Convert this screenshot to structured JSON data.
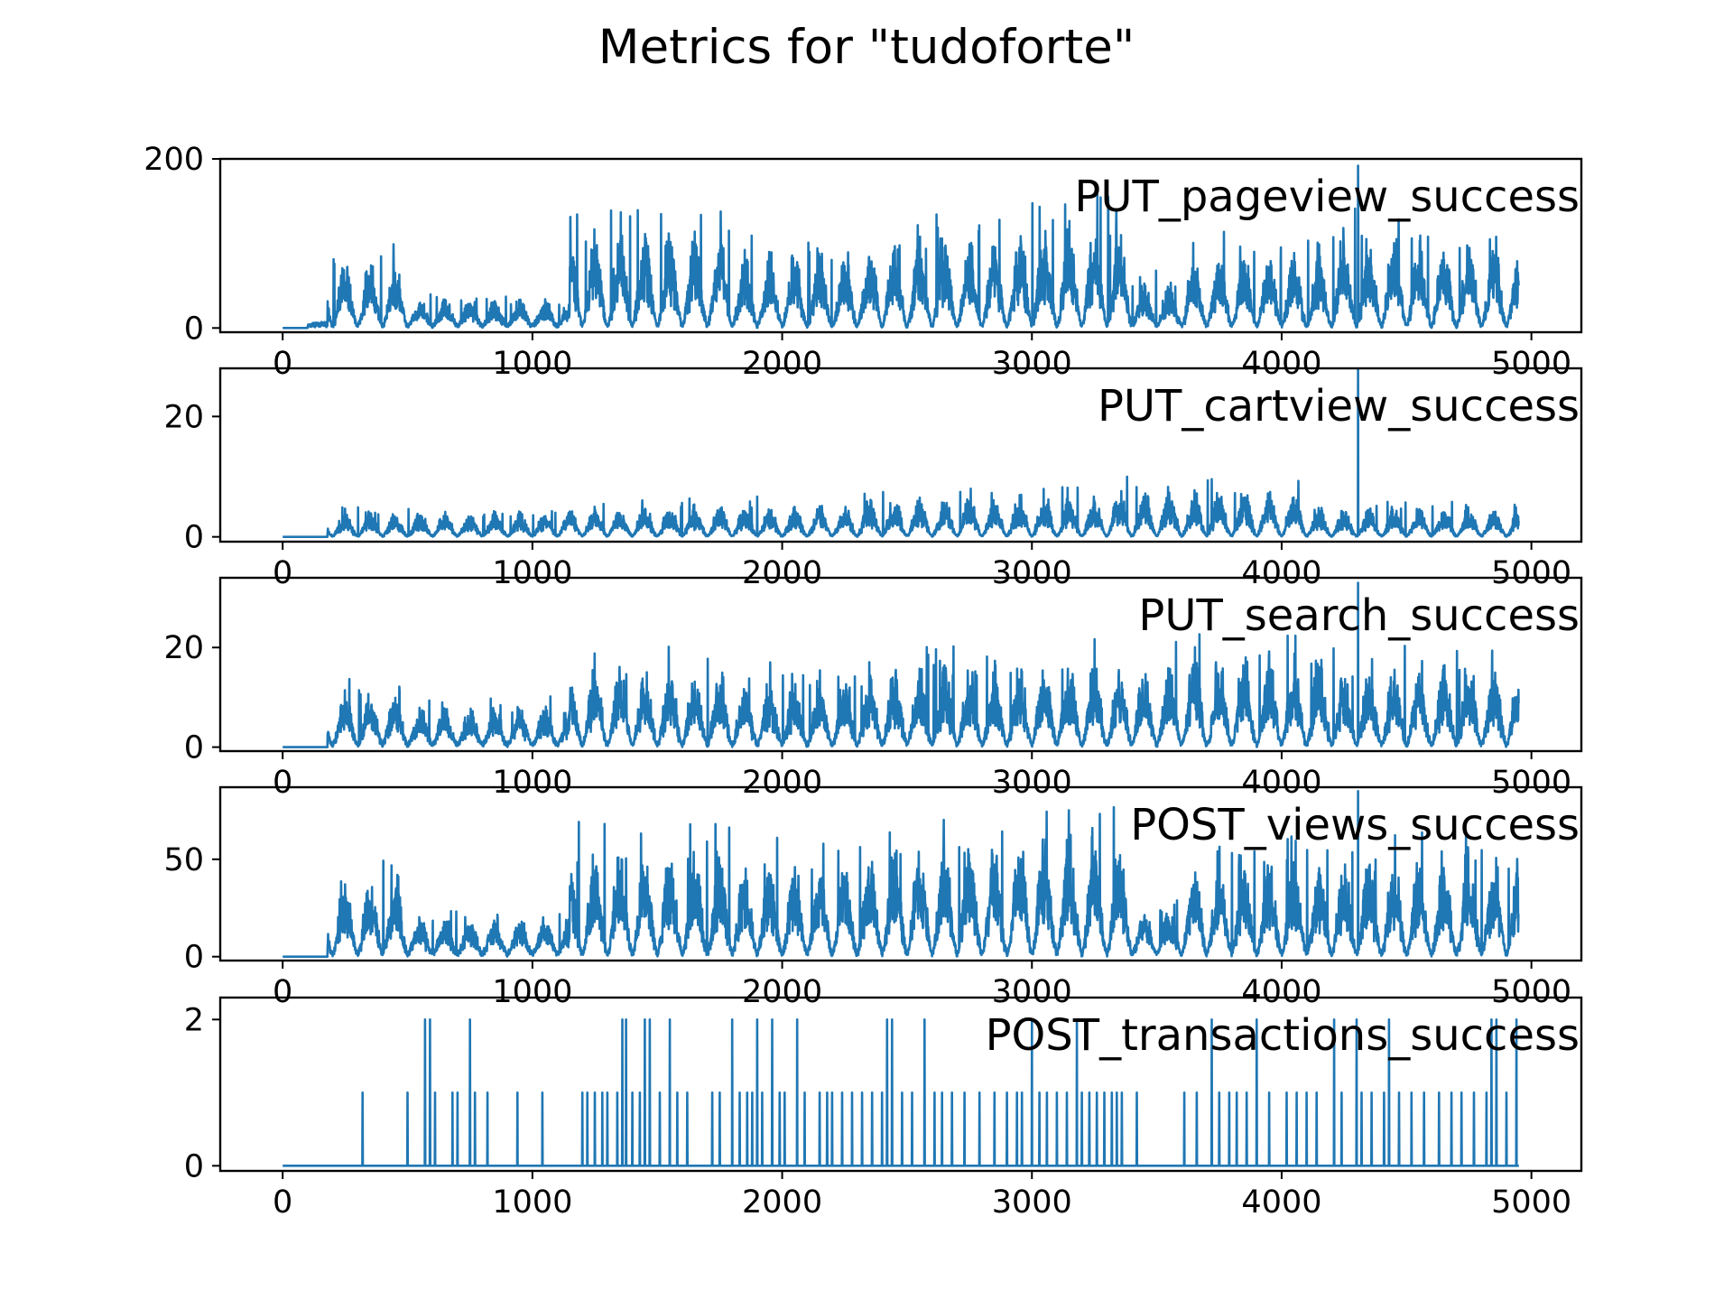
{
  "figure": {
    "title": "Metrics for \"tudoforte\""
  },
  "chart_data": [
    {
      "type": "line",
      "series": [
        {
          "name": "PUT_pageview_success",
          "color": "#1f77b4"
        }
      ],
      "xlim": [
        -250,
        5200
      ],
      "ylim": [
        -5,
        200
      ],
      "xticks": [
        0,
        1000,
        2000,
        3000,
        4000,
        5000
      ],
      "yticks": [
        0,
        200
      ],
      "profile": {
        "n": 4950,
        "onset": 100,
        "base": 5,
        "period": 100,
        "step_max": 190,
        "spike": 192,
        "seed": 11,
        "segments": [
          [
            0,
            180,
            0.02
          ],
          [
            180,
            500,
            0.45
          ],
          [
            500,
            1150,
            0.18
          ],
          [
            1150,
            1800,
            0.65
          ],
          [
            1800,
            2350,
            0.5
          ],
          [
            2350,
            2950,
            0.6
          ],
          [
            2950,
            3400,
            0.7
          ],
          [
            3400,
            3600,
            0.3
          ],
          [
            3600,
            4200,
            0.5
          ],
          [
            4200,
            4700,
            0.62
          ],
          [
            4700,
            4950,
            0.55
          ]
        ]
      }
    },
    {
      "type": "line",
      "series": [
        {
          "name": "PUT_cartview_success",
          "color": "#1f77b4"
        }
      ],
      "xlim": [
        -250,
        5200
      ],
      "ylim": [
        -0.8,
        28
      ],
      "xticks": [
        0,
        1000,
        2000,
        3000,
        4000,
        5000
      ],
      "yticks": [
        0,
        20
      ],
      "profile": {
        "n": 4950,
        "onset": 180,
        "base": 0.3,
        "period": 100,
        "step_max": 28,
        "spike": 28,
        "seed": 23,
        "segments": [
          [
            0,
            180,
            0
          ],
          [
            180,
            1100,
            0.15
          ],
          [
            1100,
            2300,
            0.2
          ],
          [
            2300,
            3300,
            0.25
          ],
          [
            3300,
            4100,
            0.3
          ],
          [
            4100,
            4950,
            0.18
          ]
        ]
      }
    },
    {
      "type": "line",
      "series": [
        {
          "name": "PUT_search_success",
          "color": "#1f77b4"
        }
      ],
      "xlim": [
        -250,
        5200
      ],
      "ylim": [
        -0.8,
        34
      ],
      "xticks": [
        0,
        1000,
        2000,
        3000,
        4000,
        5000
      ],
      "yticks": [
        0,
        20
      ],
      "profile": {
        "n": 4950,
        "onset": 180,
        "base": 1,
        "period": 100,
        "step_max": 34,
        "spike": 33,
        "seed": 37,
        "segments": [
          [
            0,
            180,
            0
          ],
          [
            180,
            500,
            0.35
          ],
          [
            500,
            1150,
            0.25
          ],
          [
            1150,
            1800,
            0.5
          ],
          [
            1800,
            2350,
            0.42
          ],
          [
            2350,
            2950,
            0.5
          ],
          [
            2950,
            3600,
            0.55
          ],
          [
            3600,
            4200,
            0.6
          ],
          [
            4200,
            4950,
            0.5
          ]
        ]
      }
    },
    {
      "type": "line",
      "series": [
        {
          "name": "POST_views_success",
          "color": "#1f77b4"
        }
      ],
      "xlim": [
        -250,
        5200
      ],
      "ylim": [
        -2,
        87
      ],
      "xticks": [
        0,
        1000,
        2000,
        3000,
        4000,
        5000
      ],
      "yticks": [
        0,
        50
      ],
      "profile": {
        "n": 4950,
        "onset": 180,
        "base": 3,
        "period": 100,
        "step_max": 86,
        "spike": 85,
        "seed": 53,
        "segments": [
          [
            0,
            180,
            0
          ],
          [
            180,
            500,
            0.5
          ],
          [
            500,
            1150,
            0.25
          ],
          [
            1150,
            1800,
            0.68
          ],
          [
            1800,
            2350,
            0.6
          ],
          [
            2350,
            2950,
            0.72
          ],
          [
            2950,
            3400,
            0.8
          ],
          [
            3400,
            3600,
            0.3
          ],
          [
            3600,
            4200,
            0.6
          ],
          [
            4200,
            4950,
            0.62
          ]
        ]
      }
    },
    {
      "type": "line",
      "series": [
        {
          "name": "POST_transactions_success",
          "color": "#1f77b4"
        }
      ],
      "xlim": [
        -250,
        5200
      ],
      "ylim": [
        -0.07,
        2.3
      ],
      "xticks": [
        0,
        1000,
        2000,
        3000,
        4000,
        5000
      ],
      "yticks": [
        0,
        2
      ],
      "events": [
        [
          320,
          1
        ],
        [
          500,
          1
        ],
        [
          570,
          2
        ],
        [
          590,
          2
        ],
        [
          610,
          1
        ],
        [
          680,
          1
        ],
        [
          700,
          1
        ],
        [
          750,
          2
        ],
        [
          770,
          1
        ],
        [
          820,
          1
        ],
        [
          940,
          1
        ],
        [
          1040,
          1
        ],
        [
          1200,
          1
        ],
        [
          1220,
          1
        ],
        [
          1250,
          1
        ],
        [
          1280,
          1
        ],
        [
          1300,
          1
        ],
        [
          1340,
          1
        ],
        [
          1360,
          2
        ],
        [
          1375,
          2
        ],
        [
          1400,
          1
        ],
        [
          1430,
          1
        ],
        [
          1450,
          2
        ],
        [
          1470,
          2
        ],
        [
          1510,
          1
        ],
        [
          1550,
          2
        ],
        [
          1580,
          1
        ],
        [
          1620,
          1
        ],
        [
          1720,
          1
        ],
        [
          1750,
          1
        ],
        [
          1800,
          2
        ],
        [
          1830,
          1
        ],
        [
          1860,
          1
        ],
        [
          1880,
          1
        ],
        [
          1900,
          2
        ],
        [
          1920,
          1
        ],
        [
          1960,
          2
        ],
        [
          1990,
          1
        ],
        [
          2010,
          1
        ],
        [
          2060,
          2
        ],
        [
          2090,
          1
        ],
        [
          2150,
          1
        ],
        [
          2180,
          1
        ],
        [
          2200,
          1
        ],
        [
          2240,
          1
        ],
        [
          2280,
          1
        ],
        [
          2320,
          1
        ],
        [
          2360,
          1
        ],
        [
          2400,
          1
        ],
        [
          2420,
          2
        ],
        [
          2440,
          2
        ],
        [
          2480,
          1
        ],
        [
          2520,
          1
        ],
        [
          2570,
          2
        ],
        [
          2610,
          1
        ],
        [
          2640,
          1
        ],
        [
          2680,
          1
        ],
        [
          2730,
          1
        ],
        [
          2790,
          1
        ],
        [
          2850,
          1
        ],
        [
          2900,
          1
        ],
        [
          2940,
          1
        ],
        [
          2960,
          1
        ],
        [
          3000,
          2
        ],
        [
          3030,
          1
        ],
        [
          3060,
          1
        ],
        [
          3100,
          1
        ],
        [
          3140,
          1
        ],
        [
          3180,
          2
        ],
        [
          3200,
          1
        ],
        [
          3230,
          1
        ],
        [
          3260,
          1
        ],
        [
          3290,
          1
        ],
        [
          3320,
          1
        ],
        [
          3340,
          1
        ],
        [
          3360,
          1
        ],
        [
          3420,
          1
        ],
        [
          3610,
          1
        ],
        [
          3660,
          1
        ],
        [
          3720,
          2
        ],
        [
          3750,
          1
        ],
        [
          3790,
          1
        ],
        [
          3820,
          1
        ],
        [
          3860,
          1
        ],
        [
          3900,
          2
        ],
        [
          3950,
          1
        ],
        [
          4020,
          1
        ],
        [
          4060,
          1
        ],
        [
          4100,
          1
        ],
        [
          4140,
          1
        ],
        [
          4210,
          2
        ],
        [
          4240,
          1
        ],
        [
          4300,
          2
        ],
        [
          4320,
          1
        ],
        [
          4360,
          1
        ],
        [
          4410,
          1
        ],
        [
          4430,
          2
        ],
        [
          4470,
          1
        ],
        [
          4520,
          1
        ],
        [
          4570,
          1
        ],
        [
          4630,
          1
        ],
        [
          4680,
          1
        ],
        [
          4720,
          1
        ],
        [
          4770,
          1
        ],
        [
          4820,
          1
        ],
        [
          4840,
          2
        ],
        [
          4860,
          2
        ],
        [
          4900,
          1
        ],
        [
          4940,
          2
        ]
      ]
    }
  ]
}
